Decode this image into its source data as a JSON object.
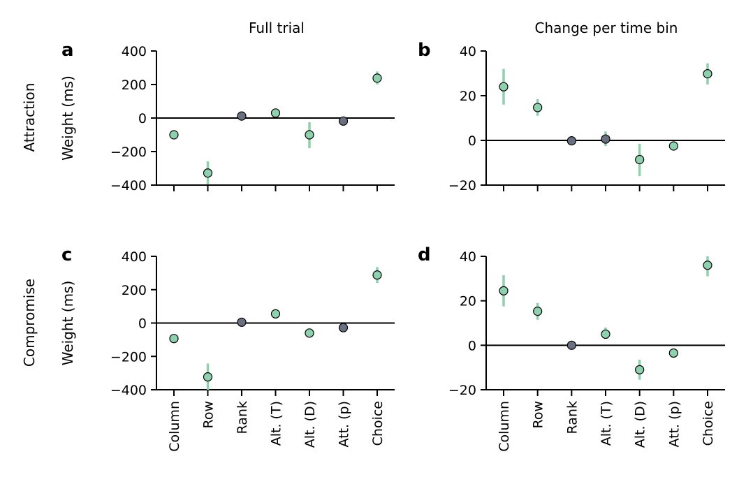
{
  "figure": {
    "column_titles": [
      "Full trial",
      "Change per time bin"
    ],
    "row_labels": [
      "Attraction",
      "Compromise"
    ]
  },
  "colors": {
    "significant_fill": "#8fd1ae",
    "nonsignificant_fill": "#6b7080",
    "errorbar": "#8fd1ae",
    "marker_edge": "#000000"
  },
  "chart_data": [
    {
      "panel": "a",
      "type": "scatter",
      "ylabel": "Weight (ms)",
      "ylim": [
        -400,
        400
      ],
      "yticks": [
        -400,
        -200,
        0,
        200,
        400
      ],
      "yticklabels": [
        "−400",
        "−200",
        "0",
        "200",
        "400"
      ],
      "categories": [
        "Column",
        "Row",
        "Rank",
        "Alt. (T)",
        "Alt. (D)",
        "Att. (p)",
        "Choice"
      ],
      "show_xticklabels": false,
      "values": [
        -100,
        -328,
        12,
        30,
        -100,
        -18,
        238
      ],
      "err_low": [
        -112,
        -395,
        2,
        18,
        -180,
        -28,
        200
      ],
      "err_high": [
        -88,
        -258,
        22,
        42,
        -25,
        -8,
        278
      ],
      "significant": [
        true,
        true,
        false,
        true,
        true,
        false,
        true
      ],
      "zero_line": true
    },
    {
      "panel": "b",
      "type": "scatter",
      "ylabel": "",
      "ylim": [
        -20,
        40
      ],
      "yticks": [
        -20,
        0,
        20,
        40
      ],
      "yticklabels": [
        "−20",
        "0",
        "20",
        "40"
      ],
      "categories": [
        "Column",
        "Row",
        "Rank",
        "Alt. (T)",
        "Alt. (D)",
        "Att. (p)",
        "Choice"
      ],
      "show_xticklabels": false,
      "values": [
        24,
        14.7,
        -0.2,
        0.6,
        -8.6,
        -2.5,
        29.8
      ],
      "err_low": [
        16,
        11,
        -1.2,
        -2.5,
        -16,
        -3.5,
        25
      ],
      "err_high": [
        32,
        18.5,
        0.8,
        4,
        -1.5,
        -1.5,
        34.5
      ],
      "significant": [
        true,
        true,
        false,
        false,
        true,
        true,
        true
      ],
      "zero_line": true
    },
    {
      "panel": "c",
      "type": "scatter",
      "ylabel": "Weight (ms)",
      "ylim": [
        -400,
        400
      ],
      "yticks": [
        -400,
        -200,
        0,
        200,
        400
      ],
      "yticklabels": [
        "−400",
        "−200",
        "0",
        "200",
        "400"
      ],
      "categories": [
        "Column",
        "Row",
        "Rank",
        "Alt. (T)",
        "Alt. (D)",
        "Att. (p)",
        "Choice"
      ],
      "show_xticklabels": true,
      "values": [
        -93,
        -323,
        5,
        55,
        -60,
        -28,
        288
      ],
      "err_low": [
        -105,
        -400,
        -5,
        43,
        -72,
        -45,
        240
      ],
      "err_high": [
        -81,
        -243,
        15,
        67,
        -48,
        -11,
        336
      ],
      "significant": [
        true,
        true,
        false,
        true,
        true,
        false,
        true
      ],
      "zero_line": true
    },
    {
      "panel": "d",
      "type": "scatter",
      "ylabel": "",
      "ylim": [
        -20,
        40
      ],
      "yticks": [
        -20,
        0,
        20,
        40
      ],
      "yticklabels": [
        "−20",
        "0",
        "20",
        "40"
      ],
      "categories": [
        "Column",
        "Row",
        "Rank",
        "Alt. (T)",
        "Alt. (D)",
        "Att. (p)",
        "Choice"
      ],
      "show_xticklabels": true,
      "values": [
        24.5,
        15.3,
        0,
        5,
        -11,
        -3.5,
        36
      ],
      "err_low": [
        17.5,
        11.5,
        -1,
        3,
        -15.5,
        -4.5,
        31
      ],
      "err_high": [
        31.5,
        19,
        1,
        8,
        -6.5,
        -2.5,
        40
      ],
      "significant": [
        true,
        true,
        false,
        true,
        true,
        true,
        true
      ],
      "zero_line": true
    }
  ]
}
